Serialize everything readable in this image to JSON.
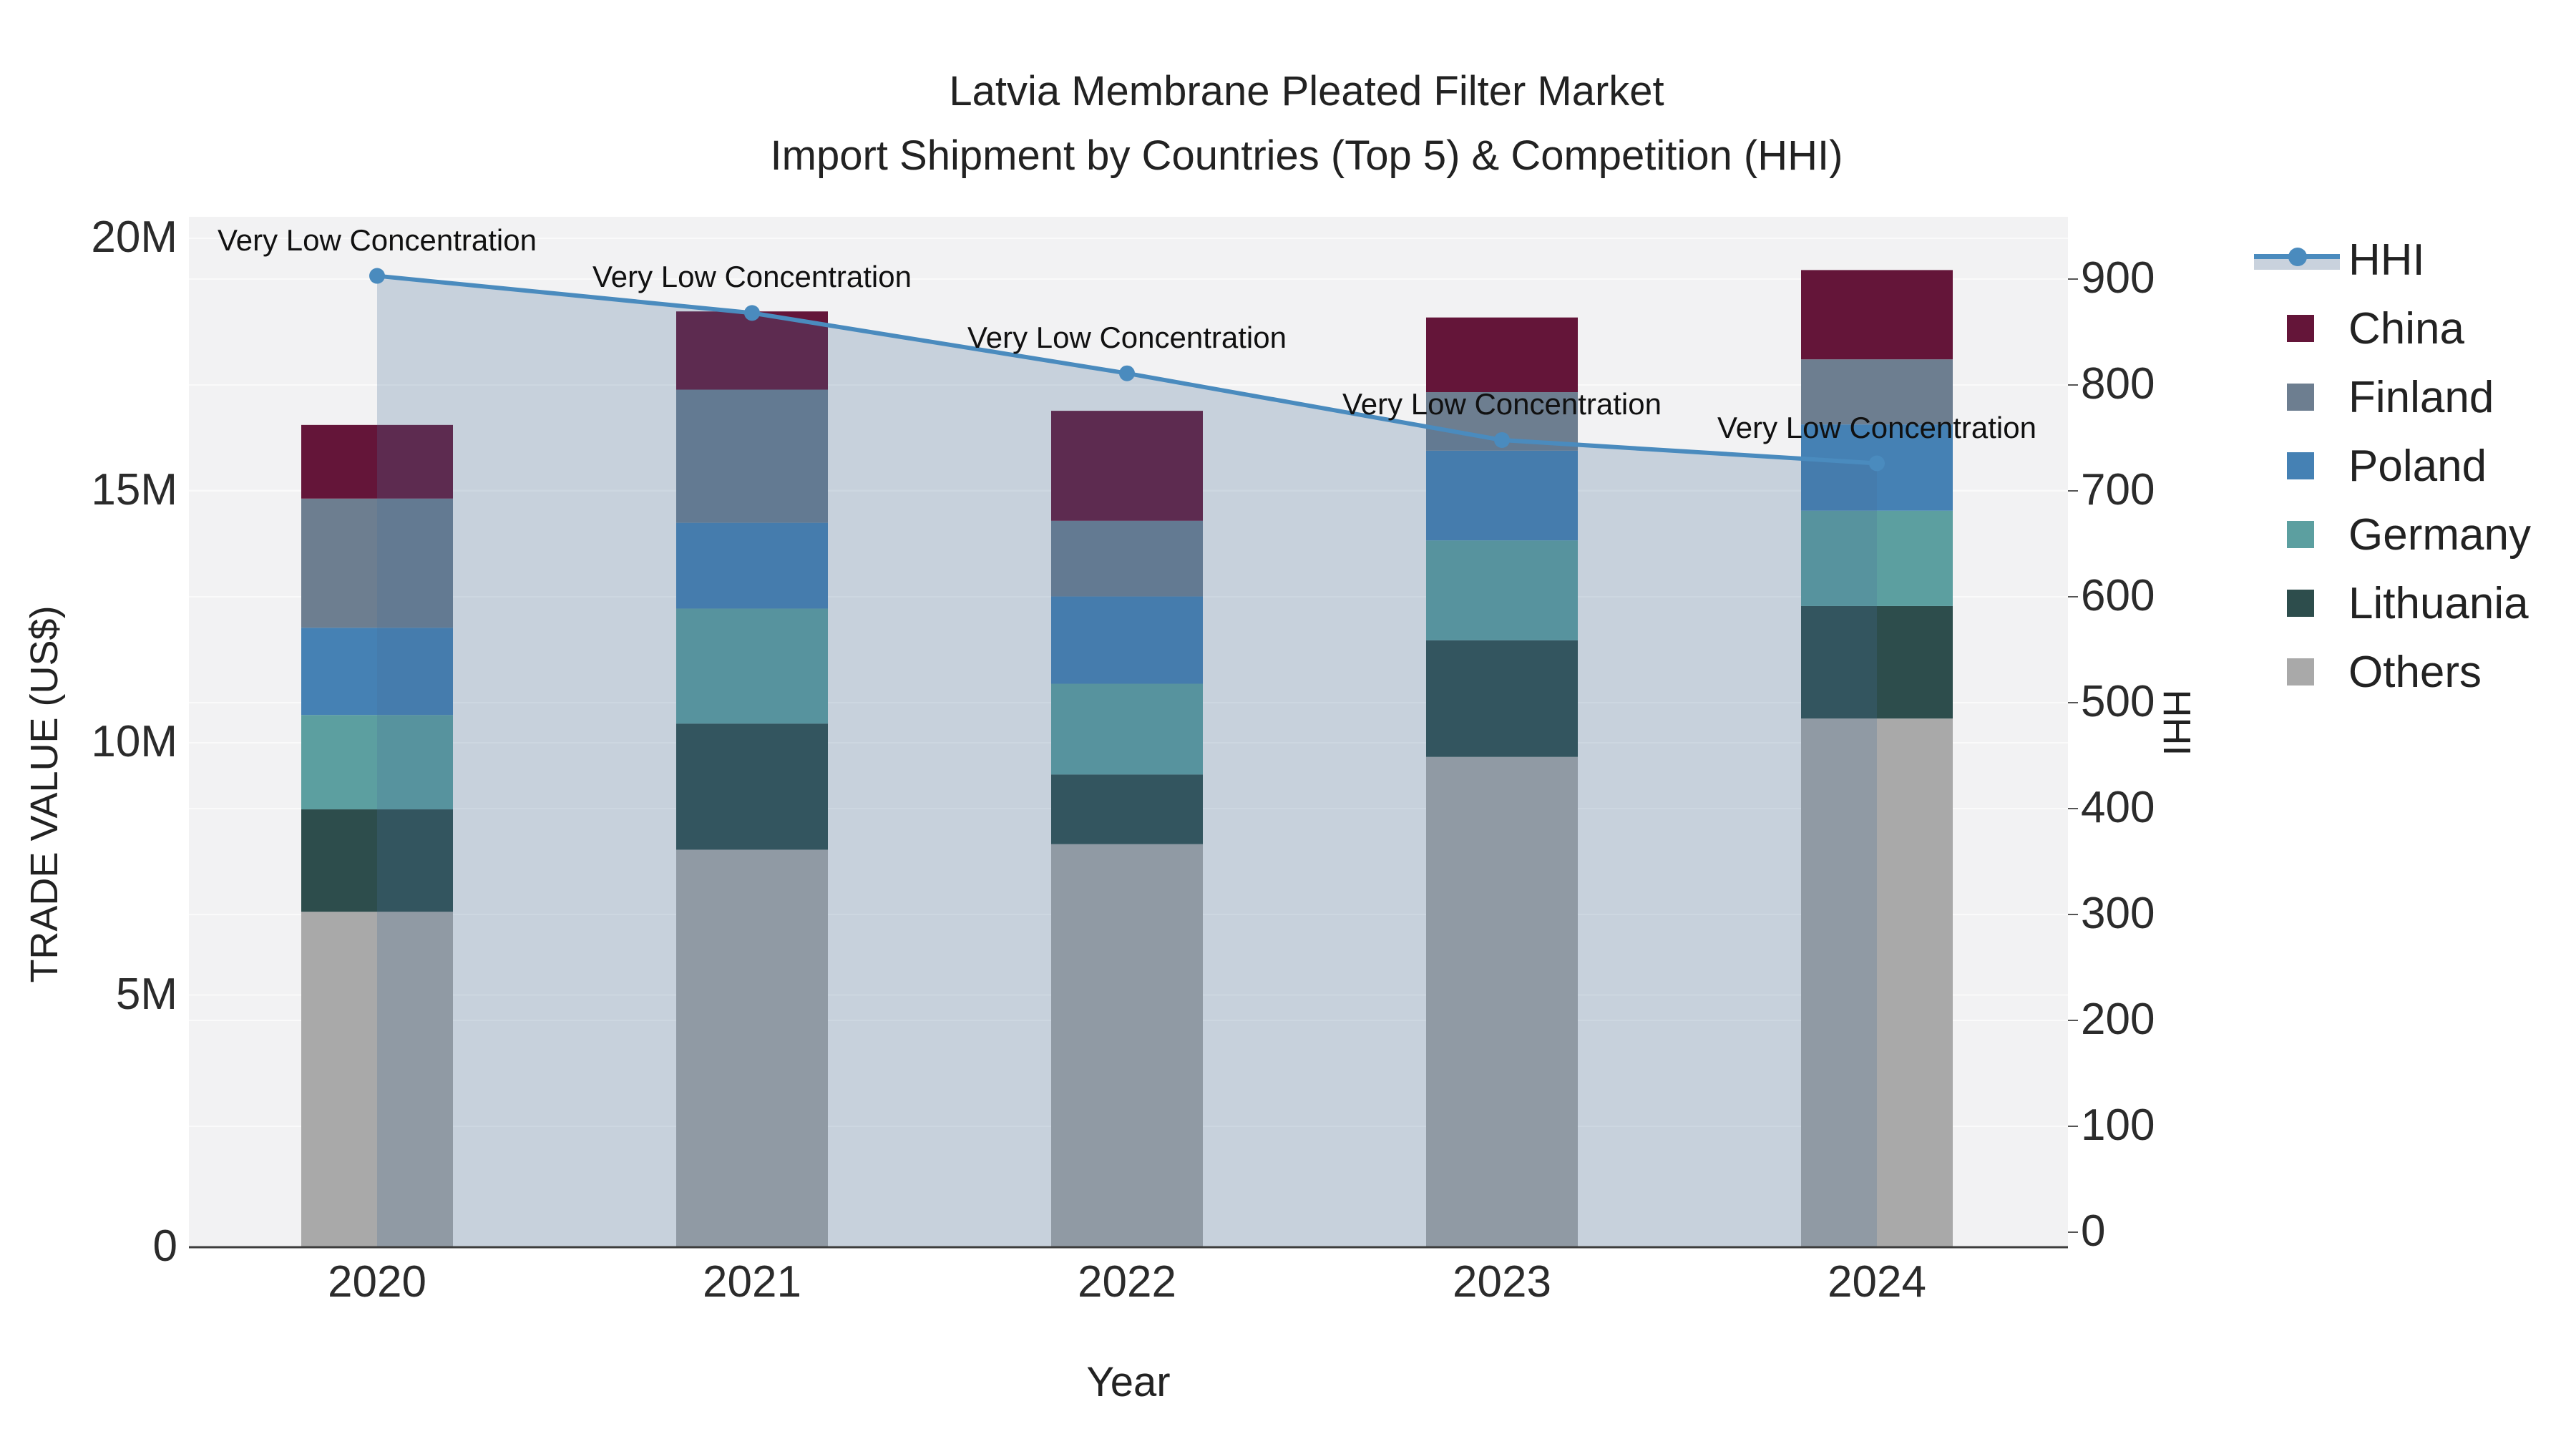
{
  "title": {
    "line1": "Latvia Membrane Pleated Filter Market",
    "line2": "Import Shipment by Countries (Top 5) & Competition (HHI)"
  },
  "x_axis": {
    "title": "Year",
    "categories": [
      "2020",
      "2021",
      "2022",
      "2023",
      "2024"
    ]
  },
  "y_left": {
    "title": "TRADE VALUE (US$)",
    "tick_labels": [
      "0",
      "5M",
      "10M",
      "15M",
      "20M"
    ],
    "tick_values_musd": [
      0,
      5,
      10,
      15,
      20
    ]
  },
  "y_right": {
    "title": "HHI",
    "tick_values": [
      0,
      100,
      200,
      300,
      400,
      500,
      600,
      700,
      800,
      900
    ]
  },
  "legend": {
    "items": [
      {
        "label": "HHI",
        "type": "line",
        "color": "#4a8bbe",
        "fill": "#c9d2dd"
      },
      {
        "label": "China",
        "type": "swatch",
        "color": "#641539"
      },
      {
        "label": "Finland",
        "type": "swatch",
        "color": "#6d7e90"
      },
      {
        "label": "Poland",
        "type": "swatch",
        "color": "#4581b4"
      },
      {
        "label": "Germany",
        "type": "swatch",
        "color": "#5c9fa0"
      },
      {
        "label": "Lithuania",
        "type": "swatch",
        "color": "#2d4d4c"
      },
      {
        "label": "Others",
        "type": "swatch",
        "color": "#a9a9a9"
      }
    ]
  },
  "chart_data": {
    "type": "combo-stacked-bar-and-line",
    "categories": [
      "2020",
      "2021",
      "2022",
      "2023",
      "2024"
    ],
    "bar_unit": "USD millions (trade value)",
    "series": [
      {
        "name": "Others",
        "color": "#a9a9a9",
        "values": [
          6.65,
          7.88,
          7.99,
          9.72,
          10.48
        ]
      },
      {
        "name": "Lithuania",
        "color": "#2d4d4c",
        "values": [
          2.03,
          2.5,
          1.38,
          2.31,
          2.23
        ]
      },
      {
        "name": "Germany",
        "color": "#5c9fa0",
        "values": [
          1.87,
          2.28,
          1.8,
          1.98,
          1.89
        ]
      },
      {
        "name": "Poland",
        "color": "#4581b4",
        "values": [
          1.73,
          1.7,
          1.73,
          1.78,
          1.71
        ]
      },
      {
        "name": "Finland",
        "color": "#6d7e90",
        "values": [
          2.56,
          2.64,
          1.5,
          1.16,
          1.29
        ]
      },
      {
        "name": "China",
        "color": "#641539",
        "values": [
          1.46,
          1.55,
          2.18,
          1.48,
          1.77
        ]
      }
    ],
    "bar_totals_musd": [
      16.3,
      18.55,
      16.58,
      18.43,
      19.37
    ],
    "line": {
      "name": "HHI",
      "axis": "right",
      "color": "#4a8bbe",
      "area_fill": "rgba(70,110,150,0.25)",
      "values": [
        903,
        868,
        811,
        748,
        726
      ]
    },
    "annotation_text": "Very Low Concentration",
    "title": "Latvia Membrane Pleated Filter Market — Import Shipment by Countries (Top 5) & Competition (HHI)",
    "xlabel": "Year",
    "ylabel_left": "TRADE VALUE (US$)",
    "ylabel_right": "HHI",
    "y_left_range_musd": [
      0,
      20
    ],
    "y_right_range": [
      0,
      950
    ],
    "grid": true,
    "legend_position": "right"
  }
}
